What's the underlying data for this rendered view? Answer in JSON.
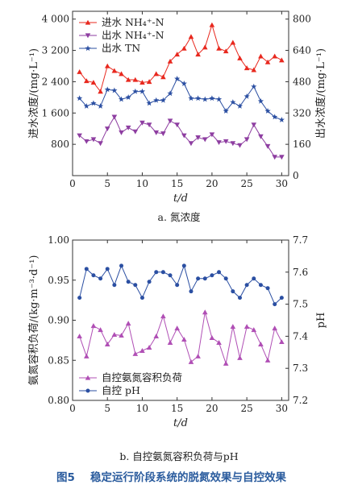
{
  "figure_caption": {
    "label": "图5",
    "text": "稳定运行阶段系统的脱氮效果与自控效果"
  },
  "chart_data": [
    {
      "type": "line",
      "panel_caption": "a. 氮浓度",
      "xlabel": "t/d",
      "xlim": [
        0,
        31
      ],
      "xticks": [
        0,
        5,
        10,
        15,
        20,
        25,
        30
      ],
      "ylabel": "进水浓度/(mg·L⁻¹)",
      "ylim": [
        0,
        4200
      ],
      "yticks": [
        800,
        1600,
        2400,
        3200,
        4000
      ],
      "ytick_labels": [
        "800",
        "1 600",
        "2 400",
        "3 200",
        "4 000"
      ],
      "y2label": "出水浓度/(mg·L⁻¹)",
      "y2lim": [
        0,
        840
      ],
      "y2ticks": [
        0,
        160,
        320,
        480,
        640,
        800
      ],
      "legend_position": "top-left",
      "x": [
        1,
        2,
        3,
        4,
        5,
        6,
        7,
        8,
        9,
        10,
        11,
        12,
        13,
        14,
        15,
        16,
        17,
        18,
        19,
        20,
        21,
        22,
        23,
        24,
        25,
        26,
        27,
        28,
        29,
        30
      ],
      "series": [
        {
          "name": "进水 NH₄⁺-N",
          "axis": "left",
          "color": "#e8281e",
          "marker": "triangle-up",
          "values": [
            2650,
            2420,
            2380,
            2150,
            2800,
            2680,
            2600,
            2450,
            2450,
            2380,
            2400,
            2600,
            2520,
            2920,
            3100,
            3250,
            3550,
            3100,
            3280,
            3850,
            3250,
            3180,
            3400,
            3000,
            2750,
            2700,
            3050,
            2900,
            3050,
            2950
          ]
        },
        {
          "name": "出水 NH₄⁺-N",
          "axis": "y2",
          "color": "#8e3ea1",
          "marker": "triangle-down",
          "values": [
            205,
            175,
            185,
            165,
            240,
            300,
            220,
            245,
            225,
            270,
            260,
            220,
            215,
            280,
            260,
            205,
            165,
            195,
            185,
            210,
            170,
            175,
            165,
            155,
            185,
            260,
            200,
            150,
            95,
            95
          ]
        },
        {
          "name": "出水 TN",
          "axis": "y2",
          "color": "#2b4fa2",
          "marker": "star",
          "values": [
            395,
            355,
            370,
            355,
            440,
            435,
            390,
            400,
            430,
            430,
            370,
            385,
            385,
            420,
            495,
            470,
            395,
            395,
            390,
            395,
            390,
            330,
            375,
            355,
            405,
            455,
            380,
            330,
            300,
            285
          ]
        }
      ]
    },
    {
      "type": "line",
      "panel_caption": "b. 自控氨氮容积负荷与pH",
      "xlabel": "t/d",
      "xlim": [
        0,
        31
      ],
      "xticks": [
        0,
        5,
        10,
        15,
        20,
        25,
        30
      ],
      "ylabel": "氨氮容积负荷/(kg·m⁻³·d⁻¹)",
      "ylim": [
        0.8,
        1.0
      ],
      "yticks": [
        0.8,
        0.85,
        0.9,
        0.95,
        1.0
      ],
      "ytick_labels": [
        "0.80",
        "0.85",
        "0.90",
        "0.95",
        "1.00"
      ],
      "y2label": "pH",
      "y2lim": [
        7.2,
        7.7
      ],
      "y2ticks": [
        7.2,
        7.3,
        7.4,
        7.5,
        7.6,
        7.7
      ],
      "y2tick_labels": [
        "7.2",
        "7.3",
        "7.4",
        "7.5",
        "7.6",
        "7.7"
      ],
      "legend_position": "bottom-left",
      "x": [
        1,
        2,
        3,
        4,
        5,
        6,
        7,
        8,
        9,
        10,
        11,
        12,
        13,
        14,
        15,
        16,
        17,
        18,
        19,
        20,
        21,
        22,
        23,
        24,
        25,
        26,
        27,
        28,
        29,
        30
      ],
      "series": [
        {
          "name": "自控氨氮容积负荷",
          "axis": "left",
          "color": "#b04fb5",
          "marker": "triangle-up",
          "values": [
            0.88,
            0.855,
            0.893,
            0.888,
            0.87,
            0.882,
            0.881,
            0.896,
            0.858,
            0.862,
            0.866,
            0.88,
            0.905,
            0.872,
            0.89,
            0.876,
            0.848,
            0.855,
            0.91,
            0.878,
            0.872,
            0.846,
            0.892,
            0.853,
            0.892,
            0.888,
            0.87,
            0.85,
            0.89,
            0.873
          ]
        },
        {
          "name": "自控 pH",
          "axis": "y2",
          "color": "#2b4fa2",
          "marker": "circle",
          "values": [
            7.52,
            7.61,
            7.59,
            7.58,
            7.61,
            7.56,
            7.62,
            7.57,
            7.56,
            7.52,
            7.57,
            7.6,
            7.6,
            7.59,
            7.56,
            7.62,
            7.54,
            7.58,
            7.58,
            7.59,
            7.6,
            7.58,
            7.54,
            7.52,
            7.56,
            7.58,
            7.56,
            7.55,
            7.5,
            7.52
          ]
        }
      ]
    }
  ]
}
